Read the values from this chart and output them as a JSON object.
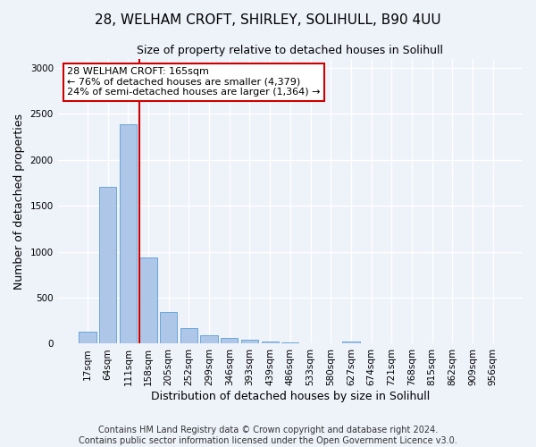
{
  "title": "28, WELHAM CROFT, SHIRLEY, SOLIHULL, B90 4UU",
  "subtitle": "Size of property relative to detached houses in Solihull",
  "xlabel": "Distribution of detached houses by size in Solihull",
  "ylabel": "Number of detached properties",
  "bar_color": "#aec6e8",
  "bar_edge_color": "#5a9fd4",
  "bg_color": "#eef2f9",
  "grid_color": "#ffffff",
  "annotation_line_color": "#cc0000",
  "categories": [
    "17sqm",
    "64sqm",
    "111sqm",
    "158sqm",
    "205sqm",
    "252sqm",
    "299sqm",
    "346sqm",
    "393sqm",
    "439sqm",
    "486sqm",
    "533sqm",
    "580sqm",
    "627sqm",
    "674sqm",
    "721sqm",
    "768sqm",
    "815sqm",
    "862sqm",
    "909sqm",
    "956sqm"
  ],
  "values": [
    130,
    1710,
    2390,
    935,
    340,
    165,
    90,
    60,
    45,
    20,
    10,
    5,
    5,
    25,
    3,
    2,
    0,
    0,
    0,
    0,
    0
  ],
  "ylim": [
    0,
    3100
  ],
  "yticks": [
    0,
    500,
    1000,
    1500,
    2000,
    2500,
    3000
  ],
  "vline_x_bar": 3,
  "annotation_text": "28 WELHAM CROFT: 165sqm\n← 76% of detached houses are smaller (4,379)\n24% of semi-detached houses are larger (1,364) →",
  "footer": "Contains HM Land Registry data © Crown copyright and database right 2024.\nContains public sector information licensed under the Open Government Licence v3.0.",
  "annotation_box_color": "#ffffff",
  "annotation_box_edge_color": "#cc0000",
  "title_fontsize": 11,
  "subtitle_fontsize": 9,
  "ylabel_fontsize": 9,
  "xlabel_fontsize": 9,
  "tick_fontsize": 7.5,
  "footer_fontsize": 7
}
